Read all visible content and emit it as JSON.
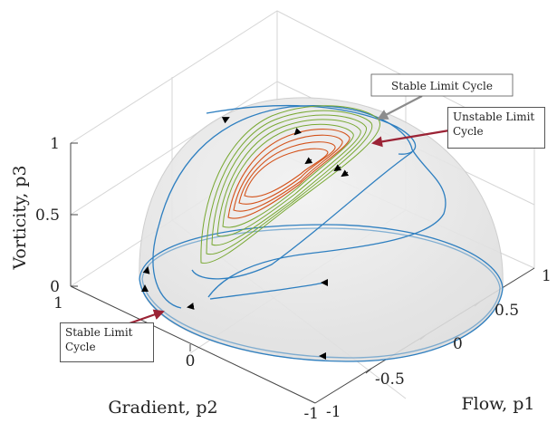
{
  "axes": {
    "z_label": "Vorticity, p3",
    "y_label": "Gradient, p2",
    "x_label": "Flow, p1",
    "z_ticks": [
      "0",
      "0.5",
      "1"
    ],
    "y_ticks": [
      "1",
      "0",
      "-1"
    ],
    "x_ticks": [
      "-1",
      "-0.5",
      "0",
      "0.5",
      "1"
    ]
  },
  "annotations": {
    "stable_top": "Stable Limit Cycle",
    "unstable": "Unstable Limit Cycle",
    "stable_bottom": "Stable Limit Cycle"
  },
  "colors": {
    "trajectory": "#2e7fc0",
    "stable_cycles": "#78a832",
    "unstable_cycles": "#d4531b",
    "pointer_red": "#9b2335",
    "pointer_grey": "#8c8c8c",
    "sphere_fill": "#e4e4e4",
    "grid": "#d6d6d6"
  }
}
